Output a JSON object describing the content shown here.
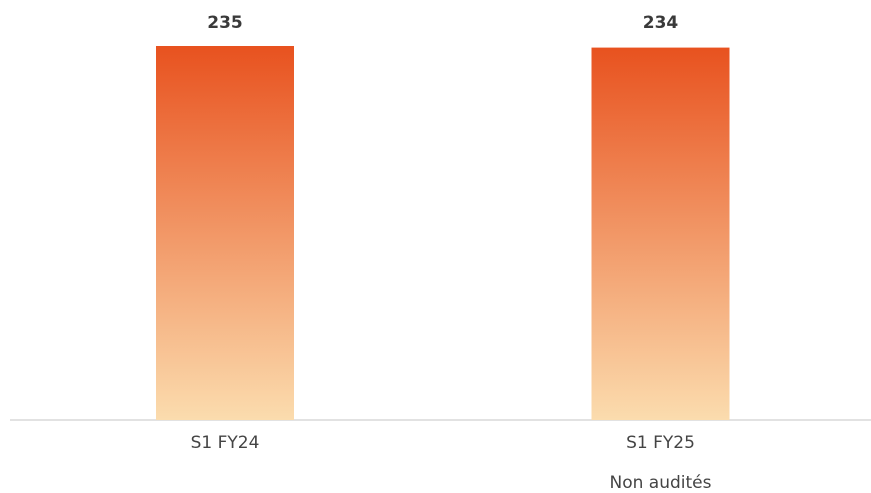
{
  "chart_data": {
    "type": "bar",
    "categories": [
      [
        "S1 FY24"
      ],
      [
        "S1 FY25",
        "Non audités"
      ]
    ],
    "values": [
      235,
      234
    ],
    "color_top": "#e8521f",
    "color_bottom": "#fbdcae"
  }
}
